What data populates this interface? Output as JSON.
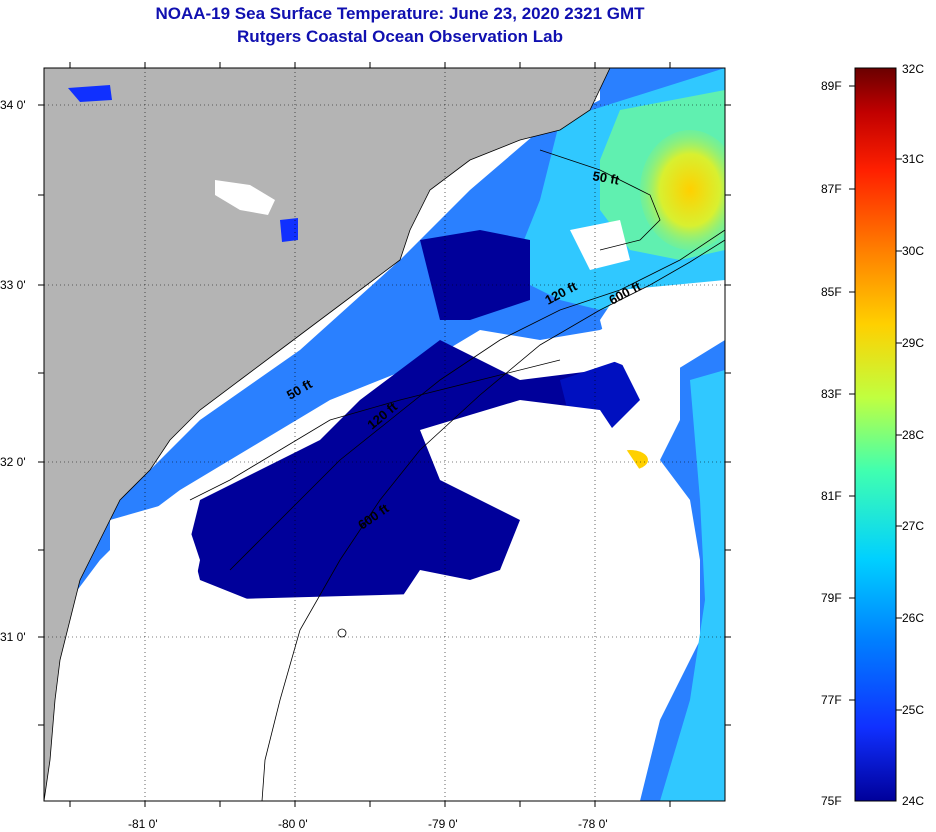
{
  "title": {
    "line1": "NOAA-19 Sea Surface Temperature:  June 23, 2020 2321 GMT",
    "line2": "Rutgers Coastal Ocean Observation Lab"
  },
  "map": {
    "region": "South Carolina / Georgia coast",
    "lat_labels": [
      "34 0'",
      "33 0'",
      "32 0'",
      "31 0'"
    ],
    "lon_labels": [
      "-81 0'",
      "-80 0'",
      "-79 0'",
      "-78 0'"
    ],
    "land_color": "#b4b4b4",
    "cloud_color": "#ffffff",
    "contour_labels": [
      "50 ft",
      "120 ft",
      "600 ft",
      "50 ft",
      "120 ft",
      "600 ft"
    ]
  },
  "colorbar": {
    "f_labels": [
      "89F",
      "87F",
      "85F",
      "83F",
      "81F",
      "79F",
      "77F",
      "75F"
    ],
    "c_labels": [
      "32C",
      "31C",
      "30C",
      "29C",
      "28C",
      "27C",
      "26C",
      "25C",
      "24C"
    ],
    "colors": [
      "#6a0000",
      "#c00000",
      "#ff2000",
      "#ff8000",
      "#ffd000",
      "#c0ff40",
      "#40ffb0",
      "#00d0ff",
      "#0080ff",
      "#1030ff",
      "#00009a"
    ]
  }
}
